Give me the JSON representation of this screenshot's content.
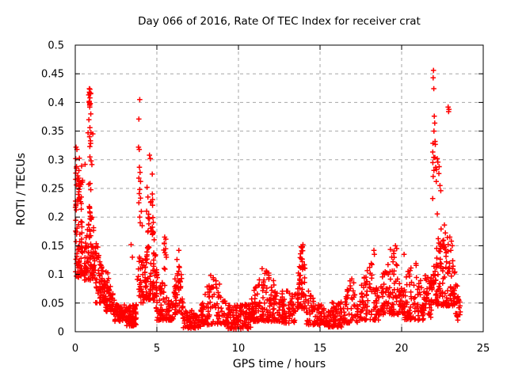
{
  "chart_data": {
    "type": "scatter",
    "title": "Day 066 of 2016, Rate Of TEC Index for receiver crat",
    "xlabel": "GPS time / hours",
    "ylabel": "ROTI / TECUs",
    "xlim": [
      0,
      25
    ],
    "ylim": [
      0,
      0.5
    ],
    "xticks": [
      0,
      5,
      10,
      15,
      20,
      25
    ],
    "xtick_labels": [
      "0",
      "5",
      "10",
      "15",
      "20",
      "25"
    ],
    "yticks": [
      0,
      0.05,
      0.1,
      0.15,
      0.2,
      0.25,
      0.3,
      0.35,
      0.4,
      0.45,
      0.5
    ],
    "ytick_labels": [
      "0",
      "0.05",
      "0.1",
      "0.15",
      "0.2",
      "0.25",
      "0.3",
      "0.35",
      "0.4",
      "0.45",
      "0.5"
    ],
    "grid": true,
    "legend": "none",
    "marker": "plus",
    "marker_color": "#ff0000",
    "grid_color": "#a6a6a6",
    "frame_color": "#000000",
    "seed": 2016066,
    "clusters": [
      [
        0.0,
        0.45,
        75,
        0.095,
        0.265,
        1.5,
        "flat"
      ],
      [
        0.02,
        0.4,
        10,
        0.24,
        0.325,
        1.0,
        "flat"
      ],
      [
        0.55,
        1.25,
        95,
        0.09,
        0.225,
        1.4,
        "peak"
      ],
      [
        0.78,
        1.1,
        10,
        0.225,
        0.38,
        1.0,
        "flat"
      ],
      [
        0.82,
        0.96,
        8,
        0.395,
        0.425,
        1.0,
        "flat"
      ],
      [
        1.25,
        1.85,
        75,
        0.05,
        0.165,
        1.4,
        "fall"
      ],
      [
        1.85,
        2.35,
        50,
        0.035,
        0.12,
        1.5,
        "fall"
      ],
      [
        2.35,
        3.05,
        55,
        0.018,
        0.062,
        1.3,
        "fall"
      ],
      [
        3.0,
        3.75,
        85,
        0.01,
        0.048,
        1.4,
        "flat"
      ],
      [
        3.8,
        4.25,
        35,
        0.05,
        0.13,
        1.2,
        "flat"
      ],
      [
        4.25,
        5.0,
        95,
        0.055,
        0.21,
        1.5,
        "peak"
      ],
      [
        4.35,
        4.9,
        8,
        0.19,
        0.25,
        1.0,
        "flat"
      ],
      [
        4.95,
        6.0,
        85,
        0.02,
        0.115,
        1.6,
        "fall"
      ],
      [
        5.35,
        5.62,
        10,
        0.1,
        0.162,
        1.0,
        "flat"
      ],
      [
        6.05,
        6.6,
        55,
        0.03,
        0.138,
        1.4,
        "peak"
      ],
      [
        6.6,
        7.7,
        75,
        0.006,
        0.052,
        1.4,
        "fall"
      ],
      [
        7.7,
        9.3,
        115,
        0.012,
        0.095,
        1.5,
        "peak"
      ],
      [
        9.3,
        10.75,
        115,
        0.005,
        0.048,
        1.4,
        "flat"
      ],
      [
        10.75,
        12.55,
        155,
        0.018,
        0.108,
        1.6,
        "peak"
      ],
      [
        12.55,
        13.5,
        70,
        0.015,
        0.072,
        1.4,
        "flat"
      ],
      [
        13.6,
        14.15,
        65,
        0.04,
        0.152,
        1.5,
        "peak"
      ],
      [
        14.15,
        15.45,
        90,
        0.012,
        0.078,
        1.6,
        "fall"
      ],
      [
        15.45,
        16.35,
        70,
        0.008,
        0.052,
        1.5,
        "flat"
      ],
      [
        16.4,
        17.35,
        60,
        0.015,
        0.095,
        1.6,
        "peak"
      ],
      [
        17.4,
        18.65,
        90,
        0.02,
        0.125,
        1.7,
        "peak"
      ],
      [
        18.7,
        20.05,
        105,
        0.03,
        0.148,
        1.8,
        "peak"
      ],
      [
        20.05,
        21.35,
        95,
        0.02,
        0.125,
        1.6,
        "peak"
      ],
      [
        21.35,
        21.85,
        40,
        0.025,
        0.1,
        1.4,
        "flat"
      ],
      [
        21.85,
        23.3,
        140,
        0.045,
        0.19,
        1.7,
        "peak"
      ],
      [
        21.9,
        22.2,
        12,
        0.19,
        0.33,
        1.0,
        "flat"
      ],
      [
        23.3,
        23.6,
        22,
        0.02,
        0.105,
        1.3,
        "fall"
      ]
    ],
    "outlier_points": [
      [
        0.05,
        0.322
      ],
      [
        0.1,
        0.318
      ],
      [
        0.03,
        0.302
      ],
      [
        0.08,
        0.288
      ],
      [
        0.6,
        0.292
      ],
      [
        0.15,
        0.272
      ],
      [
        0.22,
        0.268
      ],
      [
        0.9,
        0.423
      ],
      [
        0.87,
        0.418
      ],
      [
        0.93,
        0.415
      ],
      [
        0.9,
        0.408
      ],
      [
        0.86,
        0.402
      ],
      [
        0.92,
        0.398
      ],
      [
        0.89,
        0.392
      ],
      [
        0.95,
        0.38
      ],
      [
        0.9,
        0.356
      ],
      [
        0.88,
        0.34
      ],
      [
        0.93,
        0.333
      ],
      [
        0.9,
        0.305
      ],
      [
        0.97,
        0.298
      ],
      [
        3.42,
        0.152
      ],
      [
        3.5,
        0.13
      ],
      [
        3.95,
        0.405
      ],
      [
        3.9,
        0.371
      ],
      [
        3.88,
        0.322
      ],
      [
        3.92,
        0.318
      ],
      [
        3.93,
        0.287
      ],
      [
        3.97,
        0.278
      ],
      [
        3.9,
        0.268
      ],
      [
        4.0,
        0.262
      ],
      [
        3.95,
        0.248
      ],
      [
        3.92,
        0.241
      ],
      [
        4.0,
        0.233
      ],
      [
        4.45,
        0.235
      ],
      [
        3.9,
        0.225
      ],
      [
        4.05,
        0.21
      ],
      [
        3.95,
        0.2
      ],
      [
        4.5,
        0.205
      ],
      [
        4.48,
        0.198
      ],
      [
        3.98,
        0.19
      ],
      [
        4.1,
        0.185
      ],
      [
        4.55,
        0.308
      ],
      [
        4.6,
        0.302
      ],
      [
        4.72,
        0.275
      ],
      [
        4.4,
        0.252
      ],
      [
        5.48,
        0.165
      ],
      [
        6.35,
        0.142
      ],
      [
        8.3,
        0.098
      ],
      [
        11.45,
        0.11
      ],
      [
        11.7,
        0.106
      ],
      [
        13.95,
        0.152
      ],
      [
        13.9,
        0.147
      ],
      [
        18.3,
        0.142
      ],
      [
        18.33,
        0.135
      ],
      [
        19.62,
        0.15
      ],
      [
        19.7,
        0.145
      ],
      [
        20.15,
        0.135
      ],
      [
        21.95,
        0.456
      ],
      [
        21.93,
        0.443
      ],
      [
        21.97,
        0.424
      ],
      [
        22.0,
        0.376
      ],
      [
        22.03,
        0.364
      ],
      [
        21.98,
        0.35
      ],
      [
        22.05,
        0.332
      ],
      [
        22.18,
        0.302
      ],
      [
        22.22,
        0.296
      ],
      [
        22.3,
        0.288
      ],
      [
        22.28,
        0.276
      ],
      [
        22.12,
        0.262
      ],
      [
        22.35,
        0.255
      ],
      [
        22.4,
        0.246
      ],
      [
        22.85,
        0.392
      ],
      [
        22.9,
        0.388
      ],
      [
        22.88,
        0.384
      ],
      [
        22.95,
        0.165
      ],
      [
        23.05,
        0.158
      ],
      [
        23.1,
        0.15
      ]
    ]
  }
}
